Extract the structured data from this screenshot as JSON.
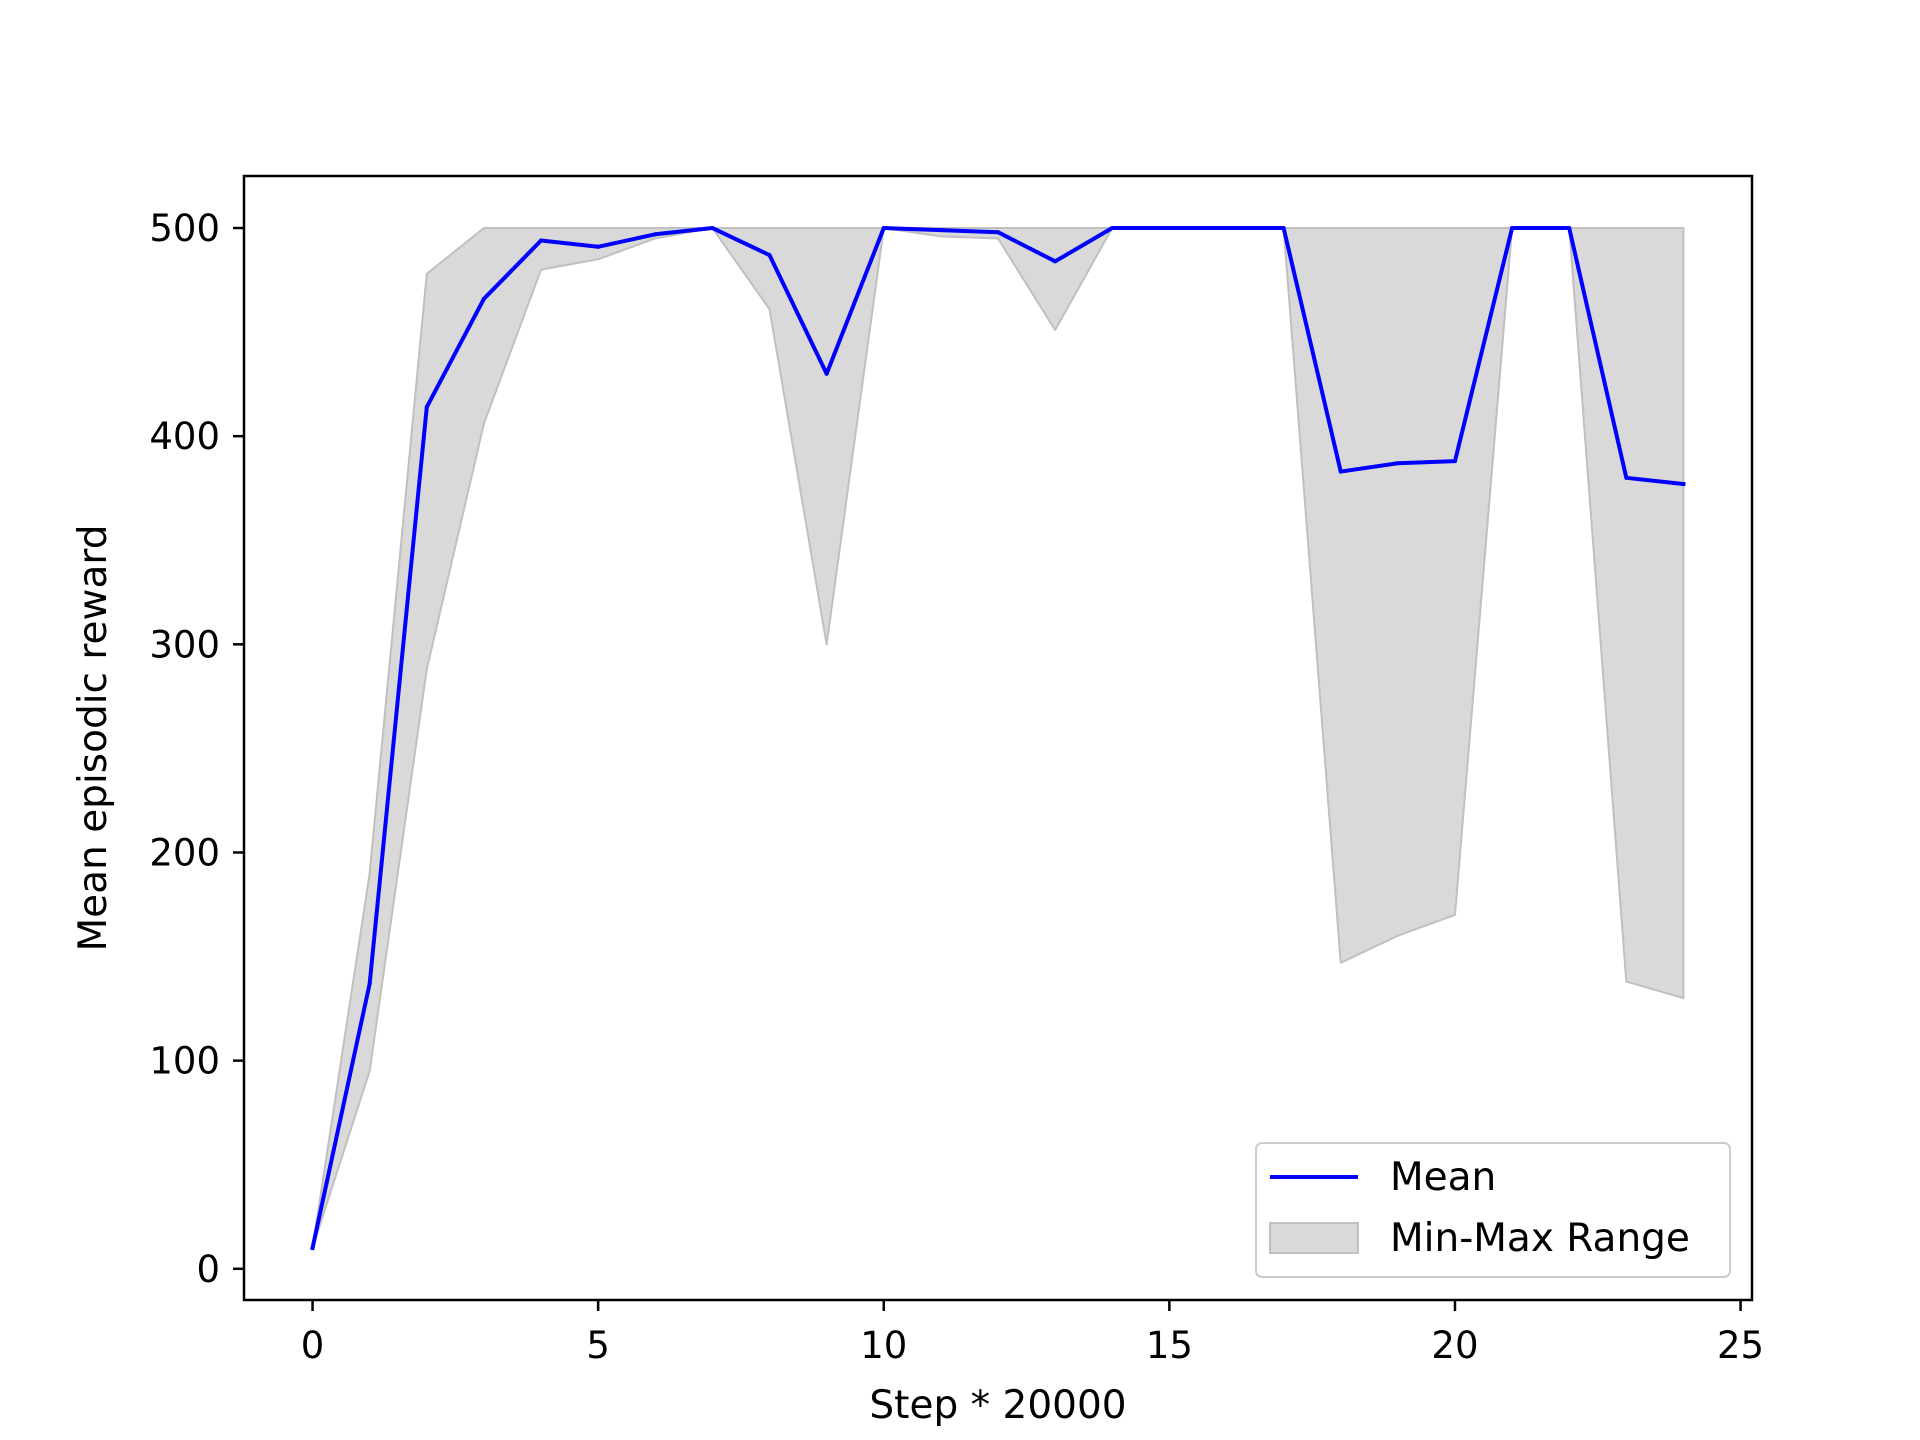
{
  "chart_data": {
    "type": "line",
    "title": "",
    "xlabel": "Step * 20000",
    "ylabel": "Mean episodic reward",
    "xlim": [
      -1.2,
      25.2
    ],
    "ylim": [
      -15,
      525
    ],
    "xticks": [
      0,
      5,
      10,
      15,
      20,
      25
    ],
    "yticks": [
      0,
      100,
      200,
      300,
      400,
      500
    ],
    "grid": false,
    "legend_position": "lower right",
    "x": [
      0,
      1,
      2,
      3,
      4,
      5,
      6,
      7,
      8,
      9,
      10,
      11,
      12,
      13,
      14,
      15,
      16,
      17,
      18,
      19,
      20,
      21,
      22,
      23,
      24
    ],
    "series": [
      {
        "name": "Mean",
        "color": "#0000ff",
        "values": [
          10,
          137,
          414,
          466,
          494,
          491,
          497,
          500,
          487,
          430,
          500,
          499,
          498,
          484,
          500,
          500,
          500,
          500,
          383,
          387,
          388,
          500,
          500,
          380,
          377
        ]
      }
    ],
    "band": {
      "name": "Min-Max Range",
      "color": "#d9d9d9",
      "edge_color": "#c0c0c0",
      "min": [
        10,
        95,
        288,
        406,
        480,
        485,
        495,
        500,
        461,
        300,
        500,
        496,
        495,
        451,
        500,
        500,
        500,
        500,
        147,
        160,
        170,
        500,
        500,
        138,
        130
      ],
      "max": [
        10,
        190,
        478,
        500,
        500,
        500,
        500,
        500,
        500,
        500,
        500,
        500,
        500,
        500,
        500,
        500,
        500,
        500,
        500,
        500,
        500,
        500,
        500,
        500,
        500
      ]
    }
  }
}
